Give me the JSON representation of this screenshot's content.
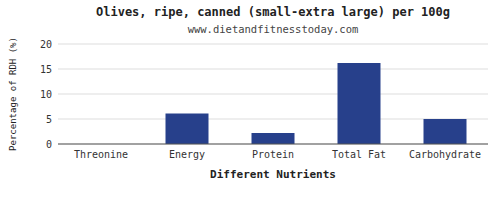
{
  "chart_data": {
    "type": "bar",
    "title": "Olives, ripe, canned (small-extra large) per 100g",
    "subtitle": "www.dietandfitnesstoday.com",
    "xlabel": "Different Nutrients",
    "ylabel": "Percentage of RDH (%)",
    "categories": [
      "Threonine",
      "Energy",
      "Protein",
      "Total Fat",
      "Carbohydrate"
    ],
    "values": [
      0,
      6.1,
      2.2,
      16.2,
      5.0
    ],
    "color": "#27408B",
    "ylim": [
      0,
      20
    ],
    "yticks": [
      0,
      5,
      10,
      15,
      20
    ],
    "grid": true
  }
}
